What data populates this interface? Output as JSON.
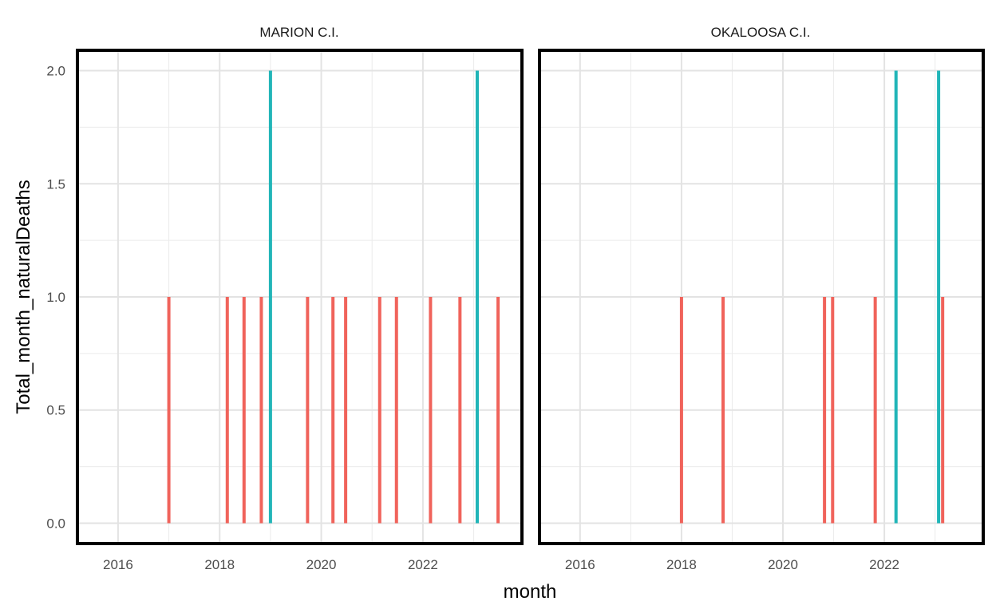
{
  "chart_data": {
    "type": "bar",
    "xlabel": "month",
    "ylabel": "Total_month_naturalDeaths",
    "xlim": [
      2015.2,
      2023.95
    ],
    "ylim": [
      -0.09,
      2.09
    ],
    "x_ticks": [
      2016,
      2018,
      2020,
      2022
    ],
    "x_tick_labels": [
      "2016",
      "2018",
      "2020",
      "2022"
    ],
    "y_ticks": [
      0.0,
      0.5,
      1.0,
      1.5,
      2.0
    ],
    "y_tick_labels": [
      "0.0",
      "0.5",
      "1.0",
      "1.5",
      "2.0"
    ],
    "grid": true,
    "legend": "none",
    "colors": {
      "1": "#f0635b",
      "2": "#21b5b8"
    },
    "panels": [
      {
        "title": "MARION C.I.",
        "bars": [
          {
            "x": 2017.0,
            "value": 1
          },
          {
            "x": 2018.15,
            "value": 1
          },
          {
            "x": 2018.48,
            "value": 1
          },
          {
            "x": 2018.82,
            "value": 1
          },
          {
            "x": 2019.0,
            "value": 2
          },
          {
            "x": 2019.73,
            "value": 1
          },
          {
            "x": 2020.23,
            "value": 1
          },
          {
            "x": 2020.48,
            "value": 1
          },
          {
            "x": 2021.15,
            "value": 1
          },
          {
            "x": 2021.48,
            "value": 1
          },
          {
            "x": 2022.15,
            "value": 1
          },
          {
            "x": 2022.73,
            "value": 1
          },
          {
            "x": 2023.07,
            "value": 2
          },
          {
            "x": 2023.48,
            "value": 1
          }
        ]
      },
      {
        "title": "OKALOOSA C.I.",
        "bars": [
          {
            "x": 2018.0,
            "value": 1
          },
          {
            "x": 2018.82,
            "value": 1
          },
          {
            "x": 2020.82,
            "value": 1
          },
          {
            "x": 2020.98,
            "value": 1
          },
          {
            "x": 2021.82,
            "value": 1
          },
          {
            "x": 2022.23,
            "value": 2
          },
          {
            "x": 2023.07,
            "value": 2
          },
          {
            "x": 2023.15,
            "value": 1
          }
        ]
      }
    ]
  }
}
